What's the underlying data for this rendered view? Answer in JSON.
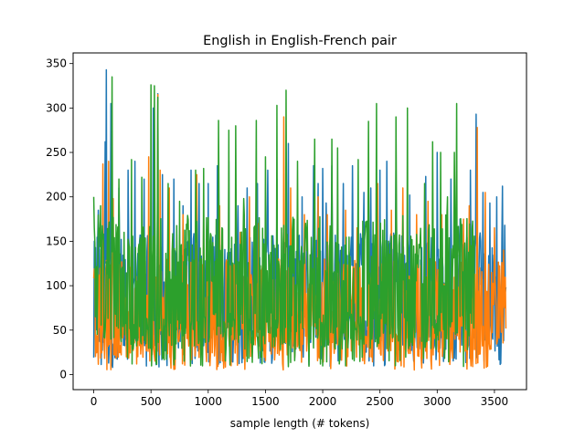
{
  "chart_data": {
    "type": "line",
    "title": "English in English-French pair",
    "xlabel": "sample length (# tokens)",
    "ylabel": "",
    "xlim": [
      -180,
      3780
    ],
    "ylim": [
      -17,
      362
    ],
    "xticks": [
      0,
      500,
      1000,
      1500,
      2000,
      2500,
      3000,
      3500
    ],
    "yticks": [
      0,
      50,
      100,
      150,
      200,
      250,
      300,
      350
    ],
    "grid": false,
    "legend": "none",
    "series": [
      {
        "color": "#1f77b4",
        "x_end": 3600,
        "peaks": [
          [
            5,
            150
          ],
          [
            40,
            185
          ],
          [
            100,
            262
          ],
          [
            110,
            343
          ],
          [
            150,
            305
          ],
          [
            220,
            210
          ],
          [
            300,
            230
          ],
          [
            360,
            240
          ],
          [
            440,
            220
          ],
          [
            520,
            300
          ],
          [
            560,
            316
          ],
          [
            600,
            225
          ],
          [
            700,
            220
          ],
          [
            780,
            190
          ],
          [
            850,
            230
          ],
          [
            920,
            215
          ],
          [
            1000,
            215
          ],
          [
            1080,
            235
          ],
          [
            1180,
            240
          ],
          [
            1260,
            190
          ],
          [
            1340,
            210
          ],
          [
            1430,
            215
          ],
          [
            1520,
            230
          ],
          [
            1600,
            220
          ],
          [
            1700,
            260
          ],
          [
            1820,
            200
          ],
          [
            1920,
            235
          ],
          [
            1960,
            215
          ],
          [
            2000,
            232
          ],
          [
            2030,
            193
          ],
          [
            2080,
            235
          ],
          [
            2180,
            215
          ],
          [
            2260,
            235
          ],
          [
            2360,
            205
          ],
          [
            2420,
            210
          ],
          [
            2500,
            230
          ],
          [
            2560,
            240
          ],
          [
            2640,
            230
          ],
          [
            2760,
            202
          ],
          [
            2900,
            223
          ],
          [
            3000,
            250
          ],
          [
            3120,
            220
          ],
          [
            3200,
            175
          ],
          [
            3290,
            230
          ],
          [
            3340,
            293
          ],
          [
            3400,
            205
          ],
          [
            3460,
            193
          ],
          [
            3520,
            200
          ],
          [
            3570,
            212
          ],
          [
            3590,
            168
          ]
        ],
        "low_min": 8,
        "band_low": [
          25,
          65
        ],
        "band_high": [
          90,
          160
        ]
      },
      {
        "color": "#ff7f0e",
        "x_end": 3600,
        "peaks": [
          [
            80,
            237
          ],
          [
            130,
            240
          ],
          [
            170,
            198
          ],
          [
            330,
            185
          ],
          [
            480,
            245
          ],
          [
            560,
            315
          ],
          [
            580,
            230
          ],
          [
            660,
            210
          ],
          [
            780,
            180
          ],
          [
            900,
            225
          ],
          [
            960,
            185
          ],
          [
            1100,
            190
          ],
          [
            1280,
            160
          ],
          [
            1360,
            200
          ],
          [
            1440,
            170
          ],
          [
            1660,
            290
          ],
          [
            1720,
            210
          ],
          [
            1840,
            180
          ],
          [
            1960,
            200
          ],
          [
            2040,
            180
          ],
          [
            2200,
            185
          ],
          [
            2300,
            165
          ],
          [
            2400,
            195
          ],
          [
            2480,
            215
          ],
          [
            2600,
            185
          ],
          [
            2700,
            210
          ],
          [
            2820,
            180
          ],
          [
            2920,
            195
          ],
          [
            3040,
            180
          ],
          [
            3160,
            170
          ],
          [
            3230,
            175
          ],
          [
            3280,
            190
          ],
          [
            3350,
            278
          ],
          [
            3420,
            205
          ],
          [
            3500,
            165
          ],
          [
            3580,
            140
          ]
        ],
        "low_min": 5,
        "band_low": [
          18,
          55
        ],
        "band_high": [
          70,
          130
        ]
      },
      {
        "color": "#2ca02c",
        "x_end": 3325,
        "peaks": [
          [
            0,
            200
          ],
          [
            60,
            190
          ],
          [
            160,
            335
          ],
          [
            220,
            220
          ],
          [
            330,
            242
          ],
          [
            420,
            222
          ],
          [
            500,
            326
          ],
          [
            530,
            325
          ],
          [
            560,
            312
          ],
          [
            650,
            215
          ],
          [
            750,
            195
          ],
          [
            890,
            230
          ],
          [
            960,
            232
          ],
          [
            1090,
            286
          ],
          [
            1180,
            275
          ],
          [
            1240,
            280
          ],
          [
            1310,
            198
          ],
          [
            1420,
            286
          ],
          [
            1500,
            245
          ],
          [
            1600,
            303
          ],
          [
            1680,
            320
          ],
          [
            1780,
            240
          ],
          [
            1930,
            265
          ],
          [
            2080,
            265
          ],
          [
            2130,
            255
          ],
          [
            2310,
            242
          ],
          [
            2400,
            285
          ],
          [
            2470,
            305
          ],
          [
            2640,
            290
          ],
          [
            2740,
            300
          ],
          [
            2890,
            215
          ],
          [
            2960,
            262
          ],
          [
            3030,
            250
          ],
          [
            3090,
            200
          ],
          [
            3150,
            250
          ],
          [
            3170,
            305
          ]
        ],
        "low_min": 8,
        "band_low": [
          28,
          70
        ],
        "band_high": [
          100,
          180
        ]
      }
    ]
  }
}
